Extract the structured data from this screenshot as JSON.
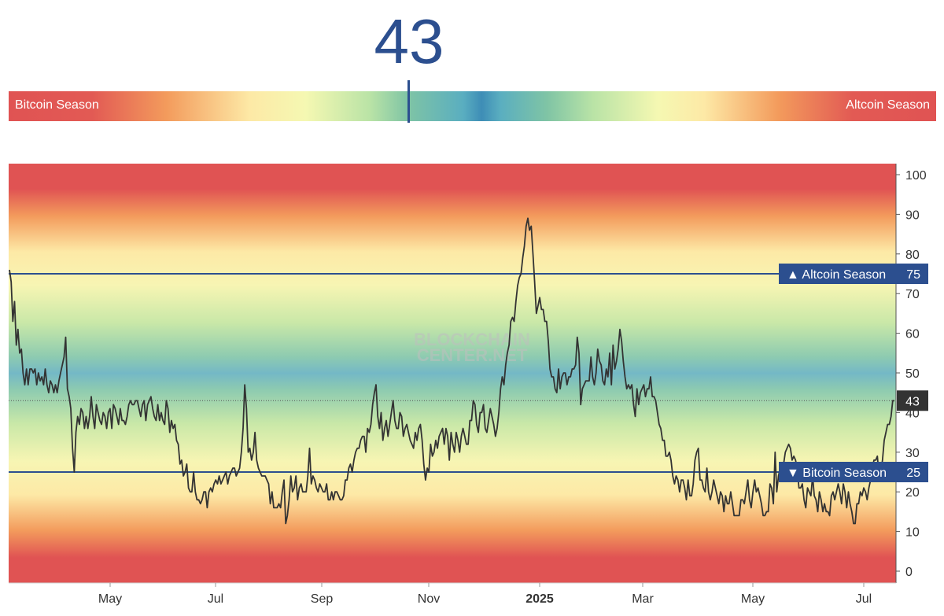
{
  "header": {
    "index_value": "43",
    "bar_left_label": "Bitcoin Season",
    "bar_right_label": "Altcoin Season"
  },
  "watermark": [
    "BLOCKCHAIN",
    "CENTER.NET"
  ],
  "colors": {
    "line": "#333333",
    "threshold": "#2c4f8f",
    "label_bg": "#2c4f8f",
    "current_bg": "#333333"
  },
  "chart_data": {
    "type": "line",
    "x_ticks": [
      "May",
      "Jul",
      "Sep",
      "Nov",
      "2025",
      "Mar",
      "May",
      "Jul"
    ],
    "y_ticks": [
      0,
      10,
      20,
      30,
      40,
      50,
      60,
      70,
      80,
      90,
      100
    ],
    "ylim": [
      0,
      100
    ],
    "thresholds": [
      {
        "label": "Altcoin Season",
        "value": 75,
        "symbol": "▲"
      },
      {
        "label": "Bitcoin Season",
        "value": 25,
        "symbol": "▼"
      }
    ],
    "current_value": 43,
    "series": [
      {
        "values": [
          76,
          73,
          63,
          68,
          57,
          61,
          55,
          56,
          50,
          47,
          51,
          47,
          51,
          51,
          50,
          51,
          47,
          50,
          48,
          49,
          47,
          51,
          47,
          45,
          48,
          47,
          45,
          47,
          45,
          48,
          50,
          52,
          54,
          59,
          46,
          44,
          41,
          31,
          25,
          35,
          39,
          37,
          41,
          40,
          36,
          39,
          36,
          39,
          44,
          39,
          36,
          42,
          40,
          38,
          37,
          40,
          39,
          36,
          40,
          41,
          36,
          42,
          41,
          39,
          37,
          41,
          38,
          38,
          37,
          39,
          42,
          43,
          42,
          42,
          43,
          43,
          41,
          39,
          42,
          43,
          38,
          42,
          43,
          44,
          41,
          39,
          38,
          42,
          38,
          40,
          38,
          37,
          43,
          41,
          35,
          38,
          36,
          37,
          33,
          32,
          27,
          28,
          24,
          25,
          27,
          21,
          20,
          20,
          25,
          20,
          18,
          18,
          17,
          18,
          20,
          20,
          16,
          20,
          21,
          20,
          22,
          23,
          22,
          24,
          22,
          23,
          24,
          25,
          22,
          24,
          25,
          26,
          26,
          24,
          25,
          26,
          30,
          36,
          47,
          41,
          30,
          31,
          28,
          30,
          35,
          28,
          26,
          25,
          24,
          24,
          24,
          23,
          22,
          17,
          20,
          16,
          16,
          16,
          17,
          16,
          20,
          23,
          12,
          14,
          18,
          24,
          20,
          21,
          24,
          18,
          21,
          22,
          20,
          20,
          20,
          24,
          31,
          22,
          24,
          23,
          21,
          20,
          22,
          21,
          20,
          20,
          22,
          18,
          18,
          20,
          18,
          20,
          20,
          19,
          18,
          18,
          19,
          23,
          23,
          26,
          27,
          25,
          28,
          30,
          31,
          31,
          33,
          34,
          34,
          30,
          36,
          35,
          37,
          42,
          45,
          47,
          39,
          36,
          40,
          33,
          36,
          38,
          34,
          37,
          40,
          43,
          38,
          36,
          36,
          40,
          39,
          34,
          36,
          37,
          35,
          33,
          32,
          31,
          35,
          33,
          36,
          37,
          33,
          27,
          23,
          26,
          25,
          32,
          29,
          30,
          33,
          31,
          34,
          35,
          36,
          32,
          36,
          34,
          28,
          35,
          32,
          30,
          35,
          33,
          30,
          34,
          36,
          34,
          32,
          32,
          38,
          38,
          43,
          42,
          37,
          35,
          40,
          40,
          42,
          36,
          35,
          38,
          41,
          39,
          37,
          34,
          36,
          40,
          46,
          49,
          47,
          52,
          55,
          57,
          63,
          64,
          63,
          68,
          72,
          74,
          75,
          79,
          82,
          87,
          89,
          86,
          87,
          80,
          73,
          65,
          67,
          69,
          66,
          66,
          63,
          63,
          58,
          51,
          49,
          49,
          46,
          45,
          51,
          46,
          49,
          50,
          50,
          47,
          49,
          49,
          51,
          51,
          52,
          59,
          55,
          42,
          46,
          47,
          48,
          48,
          48,
          54,
          49,
          47,
          50,
          56,
          53,
          52,
          48,
          47,
          51,
          49,
          55,
          47,
          57,
          51,
          53,
          56,
          61,
          58,
          53,
          49,
          46,
          47,
          46,
          47,
          42,
          39,
          46,
          42,
          45,
          46,
          47,
          44,
          46,
          46,
          49,
          44,
          44,
          43,
          40,
          37,
          36,
          33,
          33,
          29,
          29,
          30,
          28,
          24,
          22,
          24,
          23,
          20,
          23,
          23,
          21,
          18,
          23,
          19,
          19,
          22,
          28,
          30,
          31,
          23,
          23,
          21,
          20,
          26,
          20,
          18,
          20,
          23,
          21,
          19,
          17,
          20,
          19,
          15,
          19,
          17,
          17,
          20,
          17,
          14,
          14,
          14,
          14,
          18,
          18,
          17,
          20,
          23,
          18,
          16,
          20,
          23,
          20,
          21,
          19,
          17,
          14,
          14,
          15,
          15,
          22,
          21,
          17,
          30,
          20,
          24,
          26,
          26,
          27,
          30,
          31,
          32,
          31,
          28,
          29,
          28,
          26,
          21,
          21,
          22,
          18,
          16,
          21,
          20,
          19,
          24,
          19,
          18,
          15,
          20,
          18,
          15,
          17,
          15,
          15,
          14,
          19,
          20,
          18,
          20,
          22,
          20,
          17,
          22,
          20,
          16,
          20,
          17,
          15,
          12,
          12,
          17,
          17,
          20,
          19,
          21,
          20,
          18,
          21,
          23,
          26,
          28,
          28,
          29,
          24,
          25,
          28,
          33,
          35,
          37,
          37,
          39,
          43,
          43
        ]
      }
    ]
  }
}
